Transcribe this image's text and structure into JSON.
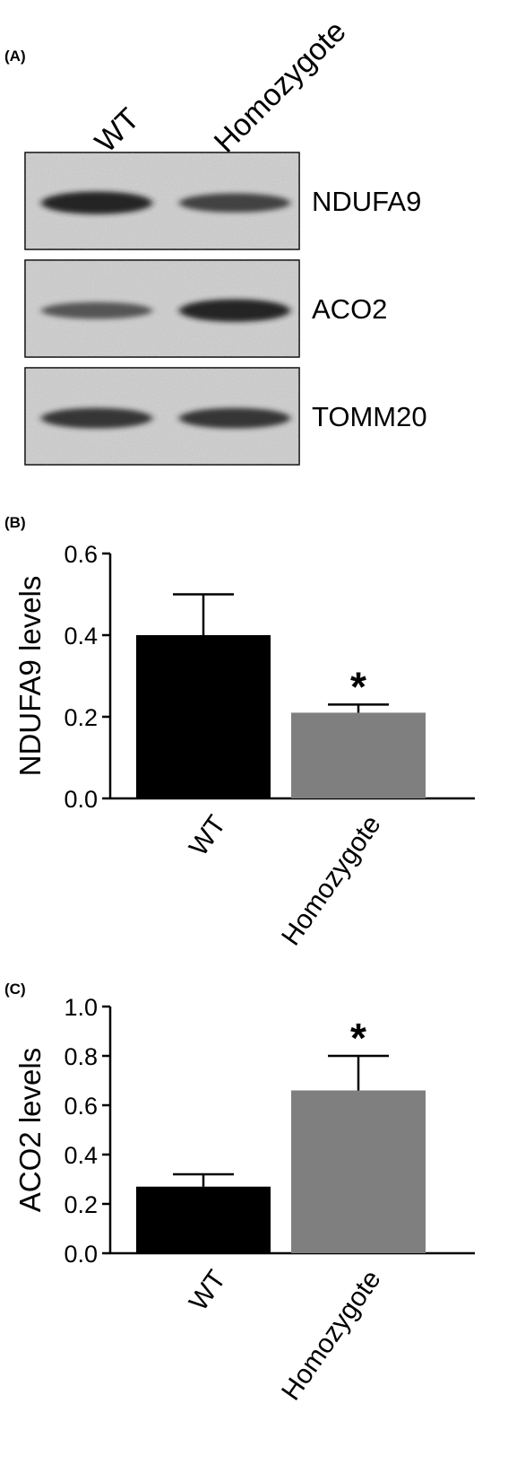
{
  "panels": {
    "a": {
      "label": "(A)",
      "lanes": [
        "WT",
        "Homozygote"
      ],
      "blots": [
        {
          "protein": "NDUFA9",
          "wt_intensity": 0.95,
          "homo_intensity": 0.7
        },
        {
          "protein": "ACO2",
          "wt_intensity": 0.55,
          "homo_intensity": 0.95
        },
        {
          "protein": "TOMM20",
          "wt_intensity": 0.8,
          "homo_intensity": 0.8
        }
      ]
    },
    "b": {
      "label": "(B)"
    },
    "c": {
      "label": "(C)"
    }
  },
  "colors": {
    "wt_bar": "#000000",
    "homozygote_bar": "#7f7f7f",
    "blot_bg": "#cfcfcf",
    "band": "#1a1a1a"
  },
  "chart_data": [
    {
      "type": "bar",
      "categories": [
        "WT",
        "Homozygote"
      ],
      "values": [
        0.4,
        0.21
      ],
      "errors": [
        0.1,
        0.02
      ],
      "colors": [
        "#000000",
        "#7f7f7f"
      ],
      "annotations": [
        "",
        "*"
      ],
      "ylabel": "NDUFA9 levels",
      "ylim": [
        0.0,
        0.6
      ],
      "yticks": [
        "0.0",
        "0.2",
        "0.4",
        "0.6"
      ],
      "grid": false
    },
    {
      "type": "bar",
      "categories": [
        "WT",
        "Homozygote"
      ],
      "values": [
        0.27,
        0.66
      ],
      "errors": [
        0.05,
        0.14
      ],
      "colors": [
        "#000000",
        "#7f7f7f"
      ],
      "annotations": [
        "",
        "*"
      ],
      "ylabel": "ACO2 levels",
      "ylim": [
        0.0,
        1.0
      ],
      "yticks": [
        "0.0",
        "0.2",
        "0.4",
        "0.6",
        "0.8",
        "1.0"
      ],
      "grid": false
    }
  ]
}
